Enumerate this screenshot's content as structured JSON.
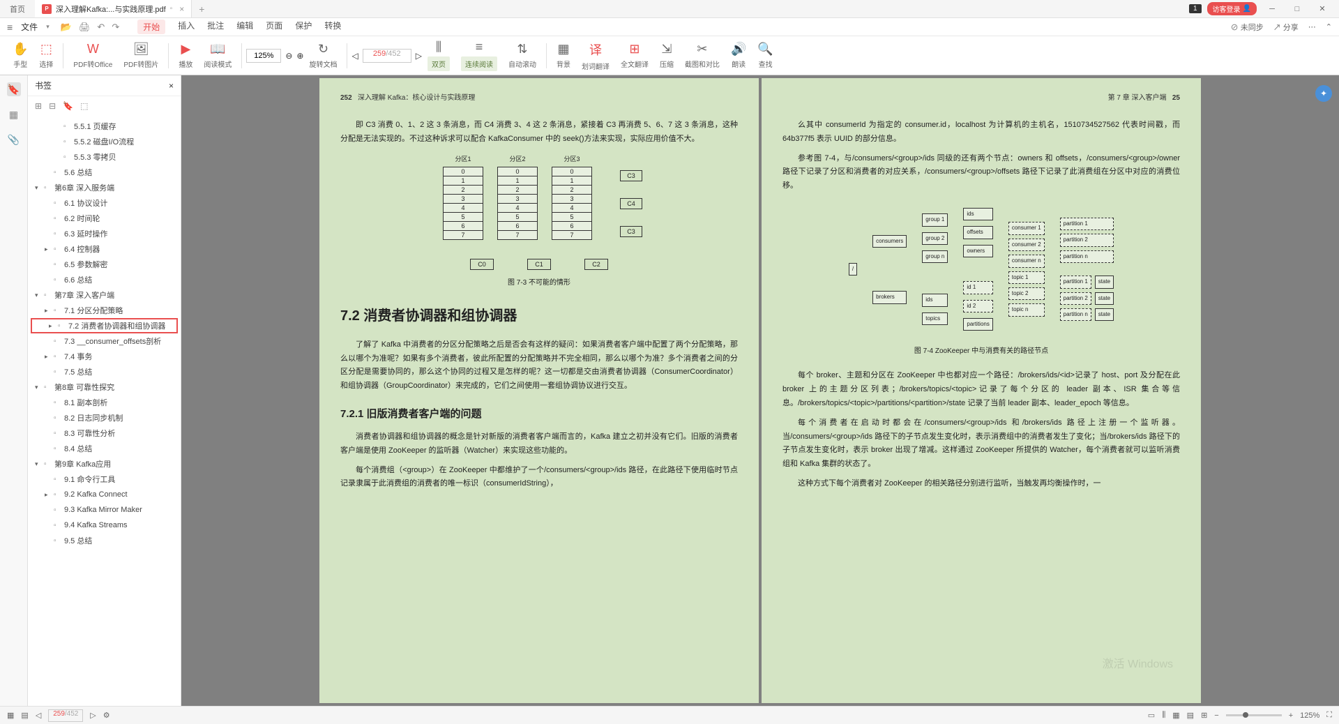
{
  "titlebar": {
    "home": "首页",
    "doc_title": "深入理解Kafka:...与实践原理.pdf",
    "badge1": "1",
    "guest_login": "访客登录"
  },
  "menubar": {
    "file": "文件",
    "tabs": [
      "开始",
      "插入",
      "批注",
      "编辑",
      "页面",
      "保护",
      "转换"
    ],
    "sync": "未同步",
    "share": "分享"
  },
  "toolbar": {
    "hand": "手型",
    "select": "选择",
    "pdf2office": "PDF转Office",
    "pdf2img": "PDF转图片",
    "play": "播放",
    "readmode": "阅读模式",
    "zoom": "125%",
    "rotate": "旋转文档",
    "page_cur": "259",
    "page_total": "/452",
    "double": "双页",
    "continuous": "连续阅读",
    "autoscroll": "自动滚动",
    "background": "背景",
    "sel_translate": "划词翻译",
    "full_translate": "全文翻译",
    "compress": "压缩",
    "crop": "截图和对比",
    "readaloud": "朗读",
    "find": "查找"
  },
  "bookmarks": {
    "title": "书签",
    "items": [
      {
        "d": 2,
        "e": "",
        "t": "5.5.1 页缓存"
      },
      {
        "d": 2,
        "e": "",
        "t": "5.5.2 磁盘I/O流程"
      },
      {
        "d": 2,
        "e": "",
        "t": "5.5.3 零拷贝"
      },
      {
        "d": 1,
        "e": "",
        "t": "5.6 总结"
      },
      {
        "d": 0,
        "e": "▾",
        "t": "第6章 深入服务端"
      },
      {
        "d": 1,
        "e": "",
        "t": "6.1 协议设计"
      },
      {
        "d": 1,
        "e": "",
        "t": "6.2 时间轮"
      },
      {
        "d": 1,
        "e": "",
        "t": "6.3 延时操作"
      },
      {
        "d": 1,
        "e": "▸",
        "t": "6.4 控制器"
      },
      {
        "d": 1,
        "e": "",
        "t": "6.5 参数解密"
      },
      {
        "d": 1,
        "e": "",
        "t": "6.6 总结"
      },
      {
        "d": 0,
        "e": "▾",
        "t": "第7章 深入客户端"
      },
      {
        "d": 1,
        "e": "▸",
        "t": "7.1 分区分配策略"
      },
      {
        "d": 1,
        "e": "▸",
        "t": "7.2 消费者协调器和组协调器",
        "sel": true
      },
      {
        "d": 1,
        "e": "",
        "t": "7.3 __consumer_offsets剖析"
      },
      {
        "d": 1,
        "e": "▸",
        "t": "7.4 事务"
      },
      {
        "d": 1,
        "e": "",
        "t": "7.5 总结"
      },
      {
        "d": 0,
        "e": "▾",
        "t": "第8章 可靠性探究"
      },
      {
        "d": 1,
        "e": "",
        "t": "8.1 副本剖析"
      },
      {
        "d": 1,
        "e": "",
        "t": "8.2 日志同步机制"
      },
      {
        "d": 1,
        "e": "",
        "t": "8.3 可靠性分析"
      },
      {
        "d": 1,
        "e": "",
        "t": "8.4 总结"
      },
      {
        "d": 0,
        "e": "▾",
        "t": "第9章 Kafka应用"
      },
      {
        "d": 1,
        "e": "",
        "t": "9.1 命令行工具"
      },
      {
        "d": 1,
        "e": "▸",
        "t": "9.2 Kafka Connect"
      },
      {
        "d": 1,
        "e": "",
        "t": "9.3 Kafka Mirror Maker"
      },
      {
        "d": 1,
        "e": "",
        "t": "9.4 Kafka Streams"
      },
      {
        "d": 1,
        "e": "",
        "t": "9.5 总结"
      }
    ]
  },
  "left_page": {
    "pagenum": "252",
    "header": "深入理解 Kafka：核心设计与实践原理",
    "p1": "即 C3 消费 0、1、2 这 3 条消息，而 C4 消费 3、4 这 2 条消息，紧接着 C3 再消费 5、6、7 这 3 条消息，这种分配是无法实现的。不过这种诉求可以配合 KafkaConsumer 中的 seek()方法来实现，实际应用价值不大。",
    "partitions": {
      "labels": [
        "分区1",
        "分区2",
        "分区3"
      ],
      "cells": [
        "0",
        "1",
        "2",
        "3",
        "4",
        "5",
        "6",
        "7"
      ],
      "side": [
        "C3",
        "C4",
        "C3"
      ],
      "sinks": [
        "C0",
        "C1",
        "C2"
      ]
    },
    "fig73": "图 7-3  不可能的情形",
    "h72": "7.2  消费者协调器和组协调器",
    "p2": "了解了 Kafka 中消费者的分区分配策略之后是否会有这样的疑问：如果消费者客户端中配置了两个分配策略，那么以哪个为准呢？如果有多个消费者，彼此所配置的分配策略并不完全相同，那么以哪个为准？多个消费者之间的分区分配是需要协同的，那么这个协同的过程又是怎样的呢？这一切都是交由消费者协调器（ConsumerCoordinator）和组协调器（GroupCoordinator）来完成的，它们之间使用一套组协调协议进行交互。",
    "h721": "7.2.1  旧版消费者客户端的问题",
    "p3": "消费者协调器和组协调器的概念是针对新版的消费者客户端而言的，Kafka 建立之初并没有它们。旧版的消费者客户端是使用 ZooKeeper 的监听器（Watcher）来实现这些功能的。",
    "p4": "每个消费组（<group>）在 ZooKeeper 中都维护了一个/consumers/<group>/ids 路径，在此路径下使用临时节点记录隶属于此消费组的消费者的唯一标识（consumerIdString），"
  },
  "right_page": {
    "chapter": "第 7 章  深入客户端",
    "pagenum": "25",
    "p1": "么其中 consumerId 为指定的 consumer.id，localhost 为计算机的主机名，1510734527562 代表时间戳，而 64b377f5 表示 UUID 的部分信息。",
    "p2": "参考图 7-4，与/consumers/<group>/ids 同级的还有两个节点：owners 和 offsets，/consumers/<group>/owner 路径下记录了分区和消费者的对应关系，/consumers/<group>/offsets 路径下记录了此消费组在分区中对应的消费位移。",
    "zk": {
      "root": "/",
      "consumers": "consumers",
      "brokers": "brokers",
      "group": [
        "group 1",
        "group 2",
        "group n"
      ],
      "mid": [
        "ids",
        "offsets",
        "owners",
        "ids",
        "topics"
      ],
      "leaf": [
        "consumer 1",
        "consumer 2",
        "consumer n",
        "topic 1",
        "topic 2",
        "topic n",
        "id 1",
        "id 2",
        "partitions"
      ],
      "end": [
        "partition 1",
        "partition 2",
        "partition n",
        "state"
      ]
    },
    "fig74": "图 7-4  ZooKeeper 中与消费有关的路径节点",
    "p3": "每个 broker、主题和分区在 ZooKeeper 中也都对应一个路径：/brokers/ids/<id>记录了 host、port 及分配在此 broker 上的主题分区列表；/brokers/topics/<topic>记录了每个分区的 leader 副本、ISR 集合等信息。/brokers/topics/<topic>/partitions/<partition>/state 记录了当前 leader 副本、leader_epoch 等信息。",
    "p4": "每个消费者在启动时都会在/consumers/<group>/ids 和/brokers/ids 路径上注册一个监听器。当/consumers/<group>/ids 路径下的子节点发生变化时，表示消费组中的消费者发生了变化；当/brokers/ids 路径下的子节点发生变化时，表示 broker 出现了增减。这样通过 ZooKeeper 所提供的 Watcher，每个消费者就可以监听消费组和 Kafka 集群的状态了。",
    "p5": "这种方式下每个消费者对 ZooKeeper 的相关路径分别进行监听，当触发再均衡操作时，一",
    "watermark": "激活 Windows"
  },
  "statusbar": {
    "page_cur": "259",
    "page_total": "/452",
    "zoom": "125%"
  }
}
